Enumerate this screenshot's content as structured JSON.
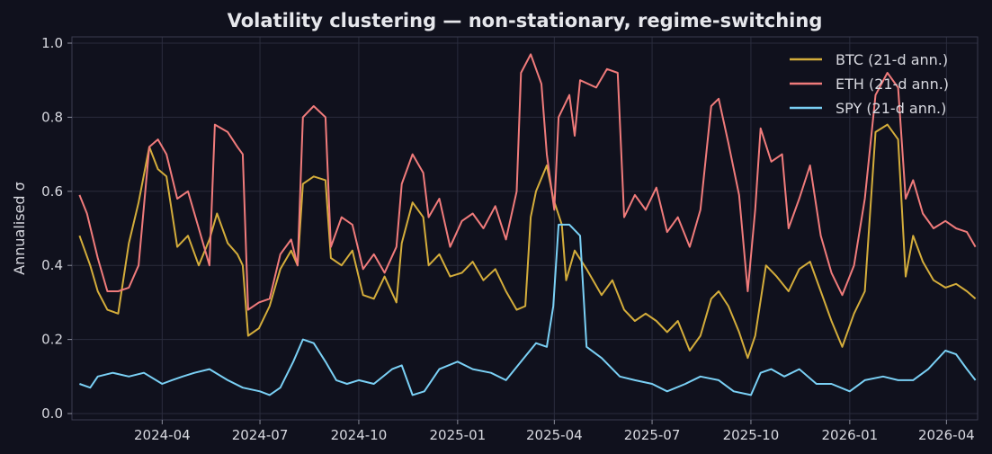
{
  "chart_data": {
    "type": "line",
    "title": "Volatility clustering — non-stationary, regime-switching",
    "xlabel": "",
    "ylabel": "Annualised σ",
    "x_range": [
      "2024-01-08",
      "2026-04-30"
    ],
    "ylim": [
      0.0,
      1.0
    ],
    "yticks": [
      0.0,
      0.2,
      0.4,
      0.6,
      0.8,
      1.0
    ],
    "ytick_labels": [
      "0.0",
      "0.2",
      "0.4",
      "0.6",
      "0.8",
      "1.0"
    ],
    "xticks": [
      "2024-04-01",
      "2024-07-01",
      "2024-10-01",
      "2025-01-01",
      "2025-04-01",
      "2025-07-01",
      "2025-10-01",
      "2026-01-01",
      "2026-04-01"
    ],
    "xtick_labels": [
      "2024-04",
      "2024-07",
      "2024-10",
      "2025-01",
      "2025-04",
      "2025-07",
      "2025-10",
      "2026-01",
      "2026-04"
    ],
    "grid": true,
    "legend_position": "top-right",
    "background_color": "#10111d",
    "series": [
      {
        "name": "BTC (21-d ann.)",
        "color": "#d4ad3b",
        "points": [
          [
            "2024-01-15",
            0.48
          ],
          [
            "2024-01-25",
            0.4
          ],
          [
            "2024-02-01",
            0.33
          ],
          [
            "2024-02-10",
            0.28
          ],
          [
            "2024-02-20",
            0.27
          ],
          [
            "2024-03-01",
            0.46
          ],
          [
            "2024-03-10",
            0.57
          ],
          [
            "2024-03-20",
            0.72
          ],
          [
            "2024-03-28",
            0.66
          ],
          [
            "2024-04-05",
            0.64
          ],
          [
            "2024-04-15",
            0.45
          ],
          [
            "2024-04-25",
            0.48
          ],
          [
            "2024-05-05",
            0.4
          ],
          [
            "2024-05-15",
            0.47
          ],
          [
            "2024-05-22",
            0.54
          ],
          [
            "2024-06-01",
            0.46
          ],
          [
            "2024-06-10",
            0.43
          ],
          [
            "2024-06-15",
            0.4
          ],
          [
            "2024-06-20",
            0.21
          ],
          [
            "2024-06-30",
            0.23
          ],
          [
            "2024-07-10",
            0.29
          ],
          [
            "2024-07-20",
            0.39
          ],
          [
            "2024-07-30",
            0.44
          ],
          [
            "2024-08-05",
            0.4
          ],
          [
            "2024-08-10",
            0.62
          ],
          [
            "2024-08-20",
            0.64
          ],
          [
            "2024-08-31",
            0.63
          ],
          [
            "2024-09-05",
            0.42
          ],
          [
            "2024-09-15",
            0.4
          ],
          [
            "2024-09-25",
            0.44
          ],
          [
            "2024-10-05",
            0.32
          ],
          [
            "2024-10-15",
            0.31
          ],
          [
            "2024-10-25",
            0.37
          ],
          [
            "2024-11-05",
            0.3
          ],
          [
            "2024-11-10",
            0.46
          ],
          [
            "2024-11-20",
            0.57
          ],
          [
            "2024-11-30",
            0.53
          ],
          [
            "2024-12-05",
            0.4
          ],
          [
            "2024-12-15",
            0.43
          ],
          [
            "2024-12-25",
            0.37
          ],
          [
            "2025-01-05",
            0.38
          ],
          [
            "2025-01-15",
            0.41
          ],
          [
            "2025-01-25",
            0.36
          ],
          [
            "2025-02-05",
            0.39
          ],
          [
            "2025-02-15",
            0.33
          ],
          [
            "2025-02-25",
            0.28
          ],
          [
            "2025-03-05",
            0.29
          ],
          [
            "2025-03-10",
            0.53
          ],
          [
            "2025-03-15",
            0.6
          ],
          [
            "2025-03-25",
            0.67
          ],
          [
            "2025-03-31",
            0.58
          ],
          [
            "2025-04-08",
            0.51
          ],
          [
            "2025-04-12",
            0.36
          ],
          [
            "2025-04-20",
            0.44
          ],
          [
            "2025-05-01",
            0.39
          ],
          [
            "2025-05-15",
            0.32
          ],
          [
            "2025-05-25",
            0.36
          ],
          [
            "2025-06-05",
            0.28
          ],
          [
            "2025-06-15",
            0.25
          ],
          [
            "2025-06-25",
            0.27
          ],
          [
            "2025-07-05",
            0.25
          ],
          [
            "2025-07-15",
            0.22
          ],
          [
            "2025-07-25",
            0.25
          ],
          [
            "2025-08-05",
            0.17
          ],
          [
            "2025-08-15",
            0.21
          ],
          [
            "2025-08-25",
            0.31
          ],
          [
            "2025-09-01",
            0.33
          ],
          [
            "2025-09-10",
            0.29
          ],
          [
            "2025-09-20",
            0.22
          ],
          [
            "2025-09-28",
            0.15
          ],
          [
            "2025-10-05",
            0.21
          ],
          [
            "2025-10-15",
            0.4
          ],
          [
            "2025-10-25",
            0.37
          ],
          [
            "2025-11-05",
            0.33
          ],
          [
            "2025-11-15",
            0.39
          ],
          [
            "2025-11-25",
            0.41
          ],
          [
            "2025-12-05",
            0.33
          ],
          [
            "2025-12-15",
            0.25
          ],
          [
            "2025-12-25",
            0.18
          ],
          [
            "2026-01-05",
            0.27
          ],
          [
            "2026-01-15",
            0.33
          ],
          [
            "2026-01-25",
            0.76
          ],
          [
            "2026-02-05",
            0.78
          ],
          [
            "2026-02-15",
            0.74
          ],
          [
            "2026-02-22",
            0.37
          ],
          [
            "2026-03-01",
            0.48
          ],
          [
            "2026-03-10",
            0.41
          ],
          [
            "2026-03-20",
            0.36
          ],
          [
            "2026-03-31",
            0.34
          ],
          [
            "2026-04-10",
            0.35
          ],
          [
            "2026-04-20",
            0.33
          ],
          [
            "2026-04-28",
            0.31
          ]
        ]
      },
      {
        "name": "ETH (21-d ann.)",
        "color": "#f07b7b",
        "points": [
          [
            "2024-01-15",
            0.59
          ],
          [
            "2024-01-22",
            0.54
          ],
          [
            "2024-02-01",
            0.42
          ],
          [
            "2024-02-10",
            0.33
          ],
          [
            "2024-02-20",
            0.33
          ],
          [
            "2024-03-01",
            0.34
          ],
          [
            "2024-03-10",
            0.4
          ],
          [
            "2024-03-20",
            0.72
          ],
          [
            "2024-03-28",
            0.74
          ],
          [
            "2024-04-05",
            0.7
          ],
          [
            "2024-04-15",
            0.58
          ],
          [
            "2024-04-25",
            0.6
          ],
          [
            "2024-05-05",
            0.5
          ],
          [
            "2024-05-15",
            0.4
          ],
          [
            "2024-05-20",
            0.78
          ],
          [
            "2024-06-01",
            0.76
          ],
          [
            "2024-06-10",
            0.72
          ],
          [
            "2024-06-15",
            0.7
          ],
          [
            "2024-06-20",
            0.28
          ],
          [
            "2024-06-30",
            0.3
          ],
          [
            "2024-07-10",
            0.31
          ],
          [
            "2024-07-20",
            0.43
          ],
          [
            "2024-07-30",
            0.47
          ],
          [
            "2024-08-05",
            0.4
          ],
          [
            "2024-08-10",
            0.8
          ],
          [
            "2024-08-20",
            0.83
          ],
          [
            "2024-08-31",
            0.8
          ],
          [
            "2024-09-05",
            0.45
          ],
          [
            "2024-09-15",
            0.53
          ],
          [
            "2024-09-25",
            0.51
          ],
          [
            "2024-10-05",
            0.39
          ],
          [
            "2024-10-15",
            0.43
          ],
          [
            "2024-10-25",
            0.38
          ],
          [
            "2024-11-05",
            0.45
          ],
          [
            "2024-11-10",
            0.62
          ],
          [
            "2024-11-20",
            0.7
          ],
          [
            "2024-11-30",
            0.65
          ],
          [
            "2024-12-05",
            0.53
          ],
          [
            "2024-12-15",
            0.58
          ],
          [
            "2024-12-25",
            0.45
          ],
          [
            "2025-01-05",
            0.52
          ],
          [
            "2025-01-15",
            0.54
          ],
          [
            "2025-01-25",
            0.5
          ],
          [
            "2025-02-05",
            0.56
          ],
          [
            "2025-02-15",
            0.47
          ],
          [
            "2025-02-25",
            0.6
          ],
          [
            "2025-03-01",
            0.92
          ],
          [
            "2025-03-10",
            0.97
          ],
          [
            "2025-03-20",
            0.89
          ],
          [
            "2025-03-25",
            0.7
          ],
          [
            "2025-04-01",
            0.55
          ],
          [
            "2025-04-05",
            0.8
          ],
          [
            "2025-04-15",
            0.86
          ],
          [
            "2025-04-20",
            0.75
          ],
          [
            "2025-04-25",
            0.9
          ],
          [
            "2025-05-10",
            0.88
          ],
          [
            "2025-05-20",
            0.93
          ],
          [
            "2025-05-30",
            0.92
          ],
          [
            "2025-06-05",
            0.53
          ],
          [
            "2025-06-15",
            0.59
          ],
          [
            "2025-06-25",
            0.55
          ],
          [
            "2025-07-05",
            0.61
          ],
          [
            "2025-07-15",
            0.49
          ],
          [
            "2025-07-25",
            0.53
          ],
          [
            "2025-08-05",
            0.45
          ],
          [
            "2025-08-15",
            0.55
          ],
          [
            "2025-08-25",
            0.83
          ],
          [
            "2025-09-01",
            0.85
          ],
          [
            "2025-09-10",
            0.73
          ],
          [
            "2025-09-20",
            0.59
          ],
          [
            "2025-09-28",
            0.33
          ],
          [
            "2025-10-05",
            0.55
          ],
          [
            "2025-10-10",
            0.77
          ],
          [
            "2025-10-20",
            0.68
          ],
          [
            "2025-10-30",
            0.7
          ],
          [
            "2025-11-05",
            0.5
          ],
          [
            "2025-11-15",
            0.58
          ],
          [
            "2025-11-25",
            0.67
          ],
          [
            "2025-12-05",
            0.48
          ],
          [
            "2025-12-15",
            0.38
          ],
          [
            "2025-12-25",
            0.32
          ],
          [
            "2026-01-05",
            0.4
          ],
          [
            "2026-01-15",
            0.58
          ],
          [
            "2026-01-25",
            0.86
          ],
          [
            "2026-02-05",
            0.92
          ],
          [
            "2026-02-15",
            0.88
          ],
          [
            "2026-02-22",
            0.58
          ],
          [
            "2026-03-01",
            0.63
          ],
          [
            "2026-03-10",
            0.54
          ],
          [
            "2026-03-20",
            0.5
          ],
          [
            "2026-03-31",
            0.52
          ],
          [
            "2026-04-10",
            0.5
          ],
          [
            "2026-04-20",
            0.49
          ],
          [
            "2026-04-28",
            0.45
          ]
        ]
      },
      {
        "name": "SPY (21-d ann.)",
        "color": "#7ad0f5",
        "points": [
          [
            "2024-01-15",
            0.08
          ],
          [
            "2024-01-25",
            0.07
          ],
          [
            "2024-02-01",
            0.1
          ],
          [
            "2024-02-15",
            0.11
          ],
          [
            "2024-03-01",
            0.1
          ],
          [
            "2024-03-15",
            0.11
          ],
          [
            "2024-04-01",
            0.08
          ],
          [
            "2024-04-10",
            0.09
          ],
          [
            "2024-04-20",
            0.1
          ],
          [
            "2024-05-01",
            0.11
          ],
          [
            "2024-05-15",
            0.12
          ],
          [
            "2024-06-01",
            0.09
          ],
          [
            "2024-06-15",
            0.07
          ],
          [
            "2024-07-01",
            0.06
          ],
          [
            "2024-07-10",
            0.05
          ],
          [
            "2024-07-20",
            0.07
          ],
          [
            "2024-08-01",
            0.14
          ],
          [
            "2024-08-10",
            0.2
          ],
          [
            "2024-08-20",
            0.19
          ],
          [
            "2024-08-31",
            0.14
          ],
          [
            "2024-09-10",
            0.09
          ],
          [
            "2024-09-20",
            0.08
          ],
          [
            "2024-10-01",
            0.09
          ],
          [
            "2024-10-15",
            0.08
          ],
          [
            "2024-11-01",
            0.12
          ],
          [
            "2024-11-10",
            0.13
          ],
          [
            "2024-11-20",
            0.05
          ],
          [
            "2024-12-01",
            0.06
          ],
          [
            "2024-12-15",
            0.12
          ],
          [
            "2025-01-01",
            0.14
          ],
          [
            "2025-01-15",
            0.12
          ],
          [
            "2025-02-01",
            0.11
          ],
          [
            "2025-02-15",
            0.09
          ],
          [
            "2025-03-01",
            0.14
          ],
          [
            "2025-03-15",
            0.19
          ],
          [
            "2025-03-25",
            0.18
          ],
          [
            "2025-03-31",
            0.29
          ],
          [
            "2025-04-05",
            0.51
          ],
          [
            "2025-04-15",
            0.51
          ],
          [
            "2025-04-25",
            0.48
          ],
          [
            "2025-05-01",
            0.18
          ],
          [
            "2025-05-15",
            0.15
          ],
          [
            "2025-06-01",
            0.1
          ],
          [
            "2025-06-15",
            0.09
          ],
          [
            "2025-07-01",
            0.08
          ],
          [
            "2025-07-15",
            0.06
          ],
          [
            "2025-08-01",
            0.08
          ],
          [
            "2025-08-15",
            0.1
          ],
          [
            "2025-09-01",
            0.09
          ],
          [
            "2025-09-15",
            0.06
          ],
          [
            "2025-10-01",
            0.05
          ],
          [
            "2025-10-10",
            0.11
          ],
          [
            "2025-10-20",
            0.12
          ],
          [
            "2025-11-01",
            0.1
          ],
          [
            "2025-11-15",
            0.12
          ],
          [
            "2025-12-01",
            0.08
          ],
          [
            "2025-12-15",
            0.08
          ],
          [
            "2026-01-01",
            0.06
          ],
          [
            "2026-01-15",
            0.09
          ],
          [
            "2026-02-01",
            0.1
          ],
          [
            "2026-02-15",
            0.09
          ],
          [
            "2026-03-01",
            0.09
          ],
          [
            "2026-03-15",
            0.12
          ],
          [
            "2026-03-31",
            0.17
          ],
          [
            "2026-04-10",
            0.16
          ],
          [
            "2026-04-20",
            0.12
          ],
          [
            "2026-04-28",
            0.09
          ]
        ]
      }
    ]
  }
}
